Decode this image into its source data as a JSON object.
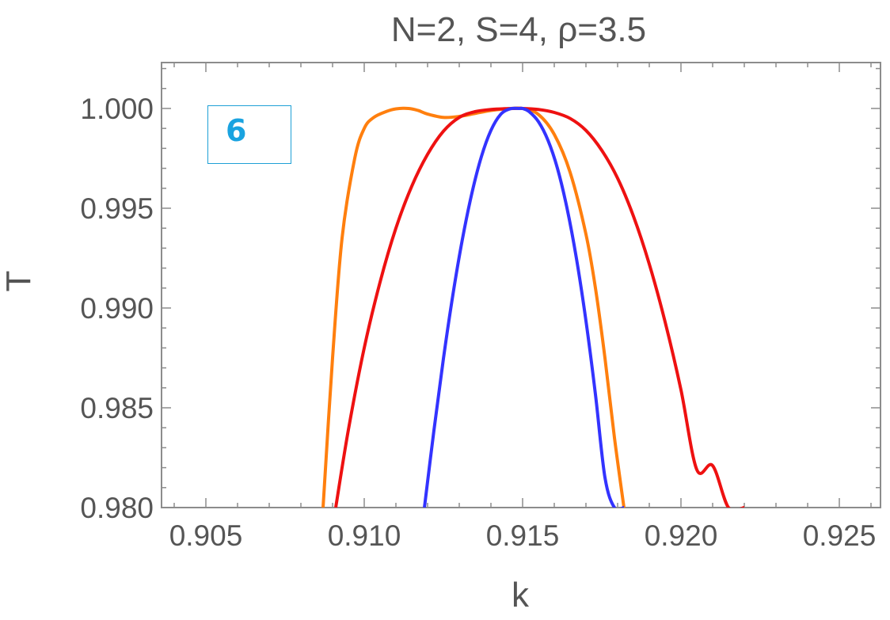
{
  "chart_data": {
    "type": "line",
    "title": "N=2, S=4, ρ=3.5",
    "xlabel": "k",
    "ylabel": "T",
    "xlim": [
      0.9036,
      0.9263
    ],
    "ylim": [
      0.98,
      1.0023
    ],
    "x_ticks": [
      "0.905",
      "0.910",
      "0.915",
      "0.920",
      "0.925"
    ],
    "y_ticks": [
      "0.980",
      "0.985",
      "0.990",
      "0.995",
      "1.000"
    ],
    "grid": false,
    "frame": true,
    "annotation": "6",
    "series": [
      {
        "color": "#ff7f0e",
        "x": [
          0.9087,
          0.909,
          0.9093,
          0.9097,
          0.91,
          0.9103,
          0.9107,
          0.911,
          0.9114,
          0.9117,
          0.912,
          0.9125,
          0.913,
          0.9135,
          0.914,
          0.9145,
          0.915,
          0.9155,
          0.916,
          0.9165,
          0.917,
          0.9173,
          0.9176,
          0.9179,
          0.9182
        ],
        "y": [
          0.98,
          0.9875,
          0.9935,
          0.9975,
          0.999,
          0.99955,
          0.99985,
          0.99998,
          1.0,
          0.9999,
          0.99972,
          0.99955,
          0.9996,
          0.99975,
          0.9999,
          0.99998,
          1.0,
          0.9997,
          0.9987,
          0.9968,
          0.9937,
          0.991,
          0.9875,
          0.9835,
          0.98
        ]
      },
      {
        "color": "#ee1111",
        "x": [
          0.9091,
          0.9095,
          0.91,
          0.9105,
          0.911,
          0.9115,
          0.912,
          0.9125,
          0.913,
          0.9135,
          0.914,
          0.9145,
          0.915,
          0.9155,
          0.916,
          0.9165,
          0.917,
          0.9175,
          0.918,
          0.9185,
          0.919,
          0.9195,
          0.92,
          0.9205,
          0.921,
          0.9215,
          0.922
        ],
        "y": [
          0.98,
          0.9839,
          0.988,
          0.9913,
          0.994,
          0.9961,
          0.9977,
          0.99886,
          0.99955,
          0.99984,
          0.99995,
          0.99999,
          1.0,
          0.99995,
          0.9998,
          0.9995,
          0.9989,
          0.9979,
          0.9965,
          0.9946,
          0.9922,
          0.9893,
          0.9859,
          0.9819,
          0.9821,
          0.98,
          0.98
        ]
      },
      {
        "color": "#3333ff",
        "x": [
          0.9119,
          0.9122,
          0.9125,
          0.9128,
          0.9131,
          0.9134,
          0.9137,
          0.914,
          0.9143,
          0.9146,
          0.9149,
          0.915,
          0.9152,
          0.9155,
          0.9158,
          0.9161,
          0.9164,
          0.9167,
          0.917,
          0.9173,
          0.9176,
          0.9179,
          0.9182
        ],
        "y": [
          0.98,
          0.98386,
          0.98746,
          0.99067,
          0.99345,
          0.99576,
          0.99759,
          0.9989,
          0.99969,
          0.99998,
          1.0,
          1.0,
          0.99985,
          0.99934,
          0.99841,
          0.997,
          0.99502,
          0.99248,
          0.98936,
          0.98567,
          0.98151,
          0.98,
          0.98
        ]
      }
    ]
  }
}
